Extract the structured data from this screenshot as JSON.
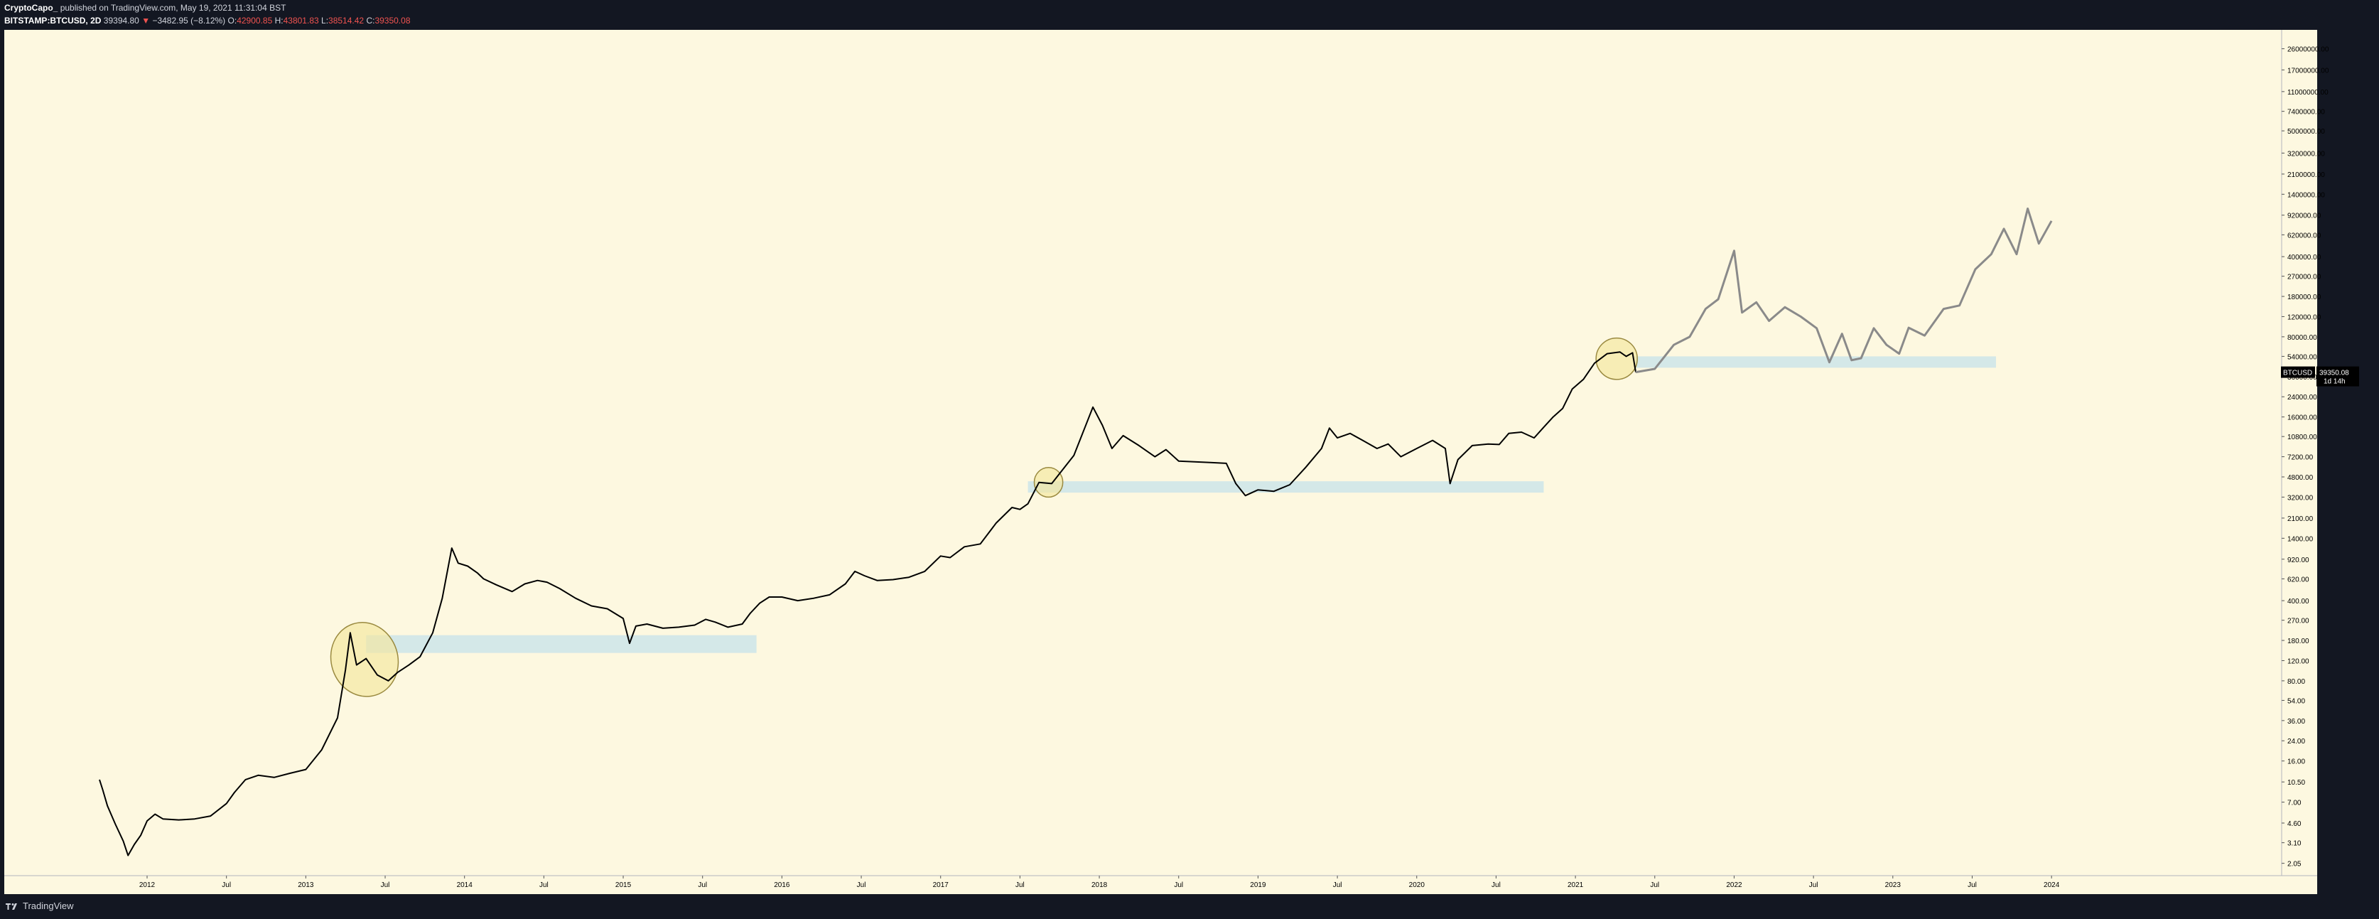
{
  "header": {
    "author": "CryptoCapo_",
    "published": "published on TradingView.com, May 19, 2021 11:31:04 BST",
    "symbol": "BITSTAMP:BTCUSD, 2D",
    "last": "39394.80",
    "change": "−3482.95 (−8.12%)",
    "o_label": "O:",
    "o_value": "42900.85",
    "h_label": "H:",
    "h_value": "43801.83",
    "l_label": "L:",
    "l_value": "38514.42",
    "c_label": "C:",
    "c_value": "39350.08"
  },
  "footer": {
    "brand": "TradingView"
  },
  "price_label": {
    "symbol": "BTCUSD",
    "price": "39350.08",
    "countdown": "1d 14h"
  },
  "colors": {
    "frame": "#131722",
    "plot_bg": "#fdf8e0",
    "candle": "#000000",
    "projection": "#8a8a8a",
    "zone": "#d4e8e8",
    "ellipse_fill": "#f5e79e",
    "ellipse_stroke": "#9a8a40",
    "axis_text": "#000000",
    "header_text": "#d1d4dc",
    "down": "#ef5350"
  },
  "chart_data": {
    "type": "line",
    "title": "",
    "xlabel": "",
    "ylabel": "",
    "y_scale": "log",
    "ylim": [
      1.6,
      38000000
    ],
    "xlim": [
      2011.1,
      2025.45
    ],
    "grid": false,
    "x_ticks": [
      {
        "label": "2012",
        "x": 2012.0
      },
      {
        "label": "Jul",
        "x": 2012.5
      },
      {
        "label": "2013",
        "x": 2013.0
      },
      {
        "label": "Jul",
        "x": 2013.5
      },
      {
        "label": "2014",
        "x": 2014.0
      },
      {
        "label": "Jul",
        "x": 2014.5
      },
      {
        "label": "2015",
        "x": 2015.0
      },
      {
        "label": "Jul",
        "x": 2015.5
      },
      {
        "label": "2016",
        "x": 2016.0
      },
      {
        "label": "Jul",
        "x": 2016.5
      },
      {
        "label": "2017",
        "x": 2017.0
      },
      {
        "label": "Jul",
        "x": 2017.5
      },
      {
        "label": "2018",
        "x": 2018.0
      },
      {
        "label": "Jul",
        "x": 2018.5
      },
      {
        "label": "2019",
        "x": 2019.0
      },
      {
        "label": "Jul",
        "x": 2019.5
      },
      {
        "label": "2020",
        "x": 2020.0
      },
      {
        "label": "Jul",
        "x": 2020.5
      },
      {
        "label": "2021",
        "x": 2021.0
      },
      {
        "label": "Jul",
        "x": 2021.5
      },
      {
        "label": "2022",
        "x": 2022.0
      },
      {
        "label": "Jul",
        "x": 2022.5
      },
      {
        "label": "2023",
        "x": 2023.0
      },
      {
        "label": "Jul",
        "x": 2023.5
      },
      {
        "label": "2024",
        "x": 2024.0
      }
    ],
    "y_ticks": [
      {
        "label": "26000000.00",
        "v": 26000000
      },
      {
        "label": "17000000.00",
        "v": 17000000
      },
      {
        "label": "11000000.00",
        "v": 11000000
      },
      {
        "label": "7400000.00",
        "v": 7400000
      },
      {
        "label": "5000000.00",
        "v": 5000000
      },
      {
        "label": "3200000.00",
        "v": 3200000
      },
      {
        "label": "2100000.00",
        "v": 2100000
      },
      {
        "label": "1400000.00",
        "v": 1400000
      },
      {
        "label": "920000.00",
        "v": 920000
      },
      {
        "label": "620000.00",
        "v": 620000
      },
      {
        "label": "400000.00",
        "v": 400000
      },
      {
        "label": "270000.00",
        "v": 270000
      },
      {
        "label": "180000.00",
        "v": 180000
      },
      {
        "label": "120000.00",
        "v": 120000
      },
      {
        "label": "80000.00",
        "v": 80000
      },
      {
        "label": "54000.00",
        "v": 54000
      },
      {
        "label": "36000.00",
        "v": 36000
      },
      {
        "label": "24000.00",
        "v": 24000
      },
      {
        "label": "16000.00",
        "v": 16000
      },
      {
        "label": "10800.00",
        "v": 10800
      },
      {
        "label": "7200.00",
        "v": 7200
      },
      {
        "label": "4800.00",
        "v": 4800
      },
      {
        "label": "3200.00",
        "v": 3200
      },
      {
        "label": "2100.00",
        "v": 2100
      },
      {
        "label": "1400.00",
        "v": 1400
      },
      {
        "label": "920.00",
        "v": 920
      },
      {
        "label": "620.00",
        "v": 620
      },
      {
        "label": "400.00",
        "v": 400
      },
      {
        "label": "270.00",
        "v": 270
      },
      {
        "label": "180.00",
        "v": 180
      },
      {
        "label": "120.00",
        "v": 120
      },
      {
        "label": "80.00",
        "v": 80
      },
      {
        "label": "54.00",
        "v": 54
      },
      {
        "label": "36.00",
        "v": 36
      },
      {
        "label": "24.00",
        "v": 24
      },
      {
        "label": "16.00",
        "v": 16
      },
      {
        "label": "10.50",
        "v": 10.5
      },
      {
        "label": "7.00",
        "v": 7
      },
      {
        "label": "4.60",
        "v": 4.6
      },
      {
        "label": "3.10",
        "v": 3.1
      },
      {
        "label": "2.05",
        "v": 2.05
      }
    ],
    "series": [
      {
        "style": "solid",
        "points": [
          [
            2011.7,
            11
          ],
          [
            2011.72,
            9
          ],
          [
            2011.75,
            6.5
          ],
          [
            2011.8,
            4.5
          ],
          [
            2011.85,
            3.2
          ],
          [
            2011.88,
            2.4
          ],
          [
            2011.92,
            3.0
          ],
          [
            2011.96,
            3.6
          ],
          [
            2012.0,
            4.8
          ],
          [
            2012.05,
            5.5
          ],
          [
            2012.1,
            5.0
          ],
          [
            2012.2,
            4.9
          ],
          [
            2012.3,
            5.0
          ],
          [
            2012.4,
            5.3
          ],
          [
            2012.5,
            6.8
          ],
          [
            2012.55,
            8.5
          ],
          [
            2012.62,
            11
          ],
          [
            2012.7,
            12
          ],
          [
            2012.8,
            11.5
          ],
          [
            2012.9,
            12.5
          ],
          [
            2013.0,
            13.5
          ],
          [
            2013.1,
            20
          ],
          [
            2013.2,
            38
          ],
          [
            2013.25,
            100
          ],
          [
            2013.28,
            210
          ],
          [
            2013.32,
            110
          ],
          [
            2013.38,
            125
          ],
          [
            2013.45,
            90
          ],
          [
            2013.52,
            80
          ],
          [
            2013.58,
            95
          ],
          [
            2013.65,
            110
          ],
          [
            2013.72,
            130
          ],
          [
            2013.8,
            210
          ],
          [
            2013.86,
            420
          ],
          [
            2013.92,
            1150
          ],
          [
            2013.96,
            850
          ],
          [
            2014.02,
            800
          ],
          [
            2014.08,
            700
          ],
          [
            2014.12,
            620
          ],
          [
            2014.2,
            550
          ],
          [
            2014.3,
            480
          ],
          [
            2014.38,
            560
          ],
          [
            2014.46,
            600
          ],
          [
            2014.52,
            580
          ],
          [
            2014.6,
            510
          ],
          [
            2014.7,
            420
          ],
          [
            2014.8,
            360
          ],
          [
            2014.9,
            340
          ],
          [
            2015.0,
            280
          ],
          [
            2015.04,
            170
          ],
          [
            2015.08,
            240
          ],
          [
            2015.15,
            250
          ],
          [
            2015.25,
            230
          ],
          [
            2015.35,
            235
          ],
          [
            2015.45,
            245
          ],
          [
            2015.52,
            275
          ],
          [
            2015.58,
            260
          ],
          [
            2015.66,
            235
          ],
          [
            2015.75,
            250
          ],
          [
            2015.8,
            310
          ],
          [
            2015.86,
            380
          ],
          [
            2015.92,
            430
          ],
          [
            2016.0,
            430
          ],
          [
            2016.1,
            400
          ],
          [
            2016.2,
            420
          ],
          [
            2016.3,
            450
          ],
          [
            2016.4,
            560
          ],
          [
            2016.46,
            720
          ],
          [
            2016.52,
            660
          ],
          [
            2016.6,
            600
          ],
          [
            2016.7,
            610
          ],
          [
            2016.8,
            640
          ],
          [
            2016.9,
            720
          ],
          [
            2017.0,
            980
          ],
          [
            2017.06,
            950
          ],
          [
            2017.15,
            1180
          ],
          [
            2017.25,
            1250
          ],
          [
            2017.35,
            1900
          ],
          [
            2017.45,
            2600
          ],
          [
            2017.5,
            2500
          ],
          [
            2017.55,
            2800
          ],
          [
            2017.62,
            4300
          ],
          [
            2017.7,
            4200
          ],
          [
            2017.78,
            5800
          ],
          [
            2017.84,
            7400
          ],
          [
            2017.9,
            12000
          ],
          [
            2017.96,
            19500
          ],
          [
            2018.02,
            13500
          ],
          [
            2018.08,
            8500
          ],
          [
            2018.15,
            11000
          ],
          [
            2018.25,
            9000
          ],
          [
            2018.35,
            7200
          ],
          [
            2018.42,
            8300
          ],
          [
            2018.5,
            6600
          ],
          [
            2018.6,
            6500
          ],
          [
            2018.7,
            6400
          ],
          [
            2018.8,
            6300
          ],
          [
            2018.86,
            4200
          ],
          [
            2018.92,
            3300
          ],
          [
            2019.0,
            3700
          ],
          [
            2019.1,
            3600
          ],
          [
            2019.2,
            4100
          ],
          [
            2019.3,
            5800
          ],
          [
            2019.4,
            8500
          ],
          [
            2019.45,
            12800
          ],
          [
            2019.5,
            10500
          ],
          [
            2019.58,
            11500
          ],
          [
            2019.66,
            10000
          ],
          [
            2019.75,
            8500
          ],
          [
            2019.82,
            9300
          ],
          [
            2019.9,
            7200
          ],
          [
            2020.0,
            8500
          ],
          [
            2020.1,
            10000
          ],
          [
            2020.18,
            8500
          ],
          [
            2020.21,
            4200
          ],
          [
            2020.26,
            6800
          ],
          [
            2020.35,
            9000
          ],
          [
            2020.45,
            9300
          ],
          [
            2020.52,
            9200
          ],
          [
            2020.58,
            11500
          ],
          [
            2020.66,
            11800
          ],
          [
            2020.74,
            10500
          ],
          [
            2020.8,
            13000
          ],
          [
            2020.86,
            16000
          ],
          [
            2020.92,
            19000
          ],
          [
            2020.98,
            28000
          ],
          [
            2021.05,
            34000
          ],
          [
            2021.12,
            47000
          ],
          [
            2021.2,
            57000
          ],
          [
            2021.28,
            59000
          ],
          [
            2021.32,
            54000
          ],
          [
            2021.36,
            58000
          ],
          [
            2021.38,
            39350
          ]
        ]
      },
      {
        "style": "projection",
        "points": [
          [
            2021.38,
            39350
          ],
          [
            2021.5,
            42000
          ],
          [
            2021.62,
            68000
          ],
          [
            2021.72,
            80000
          ],
          [
            2021.82,
            140000
          ],
          [
            2021.9,
            170000
          ],
          [
            2022.0,
            450000
          ],
          [
            2022.05,
            130000
          ],
          [
            2022.14,
            160000
          ],
          [
            2022.22,
            110000
          ],
          [
            2022.32,
            145000
          ],
          [
            2022.42,
            120000
          ],
          [
            2022.52,
            95000
          ],
          [
            2022.6,
            48000
          ],
          [
            2022.68,
            85000
          ],
          [
            2022.74,
            50000
          ],
          [
            2022.8,
            52000
          ],
          [
            2022.88,
            95000
          ],
          [
            2022.96,
            68000
          ],
          [
            2023.04,
            57000
          ],
          [
            2023.1,
            96000
          ],
          [
            2023.2,
            82000
          ],
          [
            2023.32,
            140000
          ],
          [
            2023.42,
            150000
          ],
          [
            2023.52,
            310000
          ],
          [
            2023.62,
            420000
          ],
          [
            2023.7,
            700000
          ],
          [
            2023.78,
            420000
          ],
          [
            2023.85,
            1050000
          ],
          [
            2023.92,
            520000
          ],
          [
            2024.0,
            820000
          ]
        ]
      }
    ],
    "zones": [
      {
        "x1": 2013.38,
        "x2": 2015.84,
        "y_low": 140,
        "y_high": 200
      },
      {
        "x1": 2017.55,
        "x2": 2020.8,
        "y_low": 3500,
        "y_high": 4400
      },
      {
        "x1": 2021.38,
        "x2": 2023.65,
        "y_low": 43000,
        "y_high": 54000
      }
    ],
    "highlights": [
      {
        "cx": 2013.37,
        "cy": 120,
        "rx": 0.21,
        "ry_low": 58,
        "ry_high": 260
      },
      {
        "cx": 2017.68,
        "cy": 4300,
        "rx": 0.09,
        "ry_low": 3200,
        "ry_high": 5800
      },
      {
        "cx": 2021.26,
        "cy": 52000,
        "rx": 0.13,
        "ry_low": 34000,
        "ry_high": 78000
      }
    ]
  }
}
